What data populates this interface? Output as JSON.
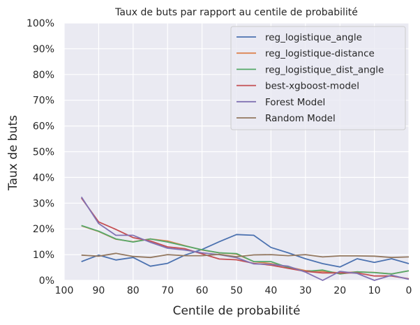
{
  "chart_data": {
    "type": "line",
    "title": "Taux de buts par rapport au centile de probabilité",
    "xlabel": "Centile de probabilité",
    "ylabel": "Taux de buts",
    "xlim": [
      100,
      0
    ],
    "ylim": [
      0,
      100
    ],
    "x_ticks": [
      "100",
      "90",
      "80",
      "70",
      "60",
      "50",
      "40",
      "30",
      "20",
      "10",
      "0"
    ],
    "y_ticks": [
      "0%",
      "10%",
      "20%",
      "30%",
      "40%",
      "50%",
      "60%",
      "70%",
      "80%",
      "90%",
      "100%"
    ],
    "grid": true,
    "legend_position": "top-right",
    "x": [
      95,
      90,
      85,
      80,
      75,
      70,
      65,
      60,
      55,
      50,
      45,
      40,
      35,
      30,
      25,
      20,
      15,
      10,
      5,
      0
    ],
    "series": [
      {
        "name": "reg_logistique_angle",
        "color": "#4c72b0",
        "values": [
          7.3,
          9.8,
          7.9,
          8.9,
          5.5,
          6.6,
          9.8,
          12.0,
          15.0,
          17.8,
          17.5,
          12.8,
          10.7,
          8.4,
          6.5,
          5.2,
          8.4,
          7.0,
          8.4,
          6.5
        ]
      },
      {
        "name": "reg_logistique-distance",
        "color": "#dd8452",
        "values": [
          21.2,
          19.0,
          16.0,
          15.0,
          16.1,
          15.3,
          13.5,
          11.8,
          10.7,
          10.2,
          7.3,
          6.5,
          5.2,
          3.8,
          3.5,
          2.9,
          3.3,
          3.1,
          2.5,
          3.7
        ]
      },
      {
        "name": "reg_logistique_dist_angle",
        "color": "#55a868",
        "values": [
          21.3,
          19.1,
          16.1,
          14.9,
          16.1,
          14.9,
          13.4,
          11.9,
          10.7,
          10.4,
          7.3,
          7.3,
          5.0,
          3.5,
          4.0,
          2.5,
          3.3,
          3.0,
          2.5,
          3.7
        ]
      },
      {
        "name": "best-xgboost-model",
        "color": "#c44e52",
        "values": [
          32.0,
          22.7,
          19.8,
          16.6,
          15.3,
          13.0,
          12.3,
          10.3,
          8.3,
          8.0,
          6.6,
          5.9,
          4.7,
          3.5,
          2.9,
          2.9,
          2.9,
          1.7,
          1.7,
          0.6
        ]
      },
      {
        "name": "Forest Model",
        "color": "#8172b3",
        "values": [
          32.4,
          22.1,
          17.5,
          17.5,
          14.8,
          12.5,
          11.8,
          10.7,
          10.0,
          8.8,
          6.4,
          6.2,
          5.5,
          3.2,
          0.0,
          3.5,
          2.7,
          0.0,
          2.0,
          0.4
        ]
      },
      {
        "name": "Random Model",
        "color": "#937860",
        "values": [
          9.8,
          9.4,
          10.5,
          9.3,
          8.9,
          10.0,
          9.6,
          9.6,
          10.1,
          9.2,
          9.9,
          10.0,
          9.6,
          10.0,
          9.1,
          9.5,
          9.5,
          9.4,
          8.9,
          9.1
        ]
      }
    ]
  },
  "theme": {
    "panel_background": "#eaeaf2",
    "grid_color": "#ffffff",
    "text_color": "#262626"
  }
}
